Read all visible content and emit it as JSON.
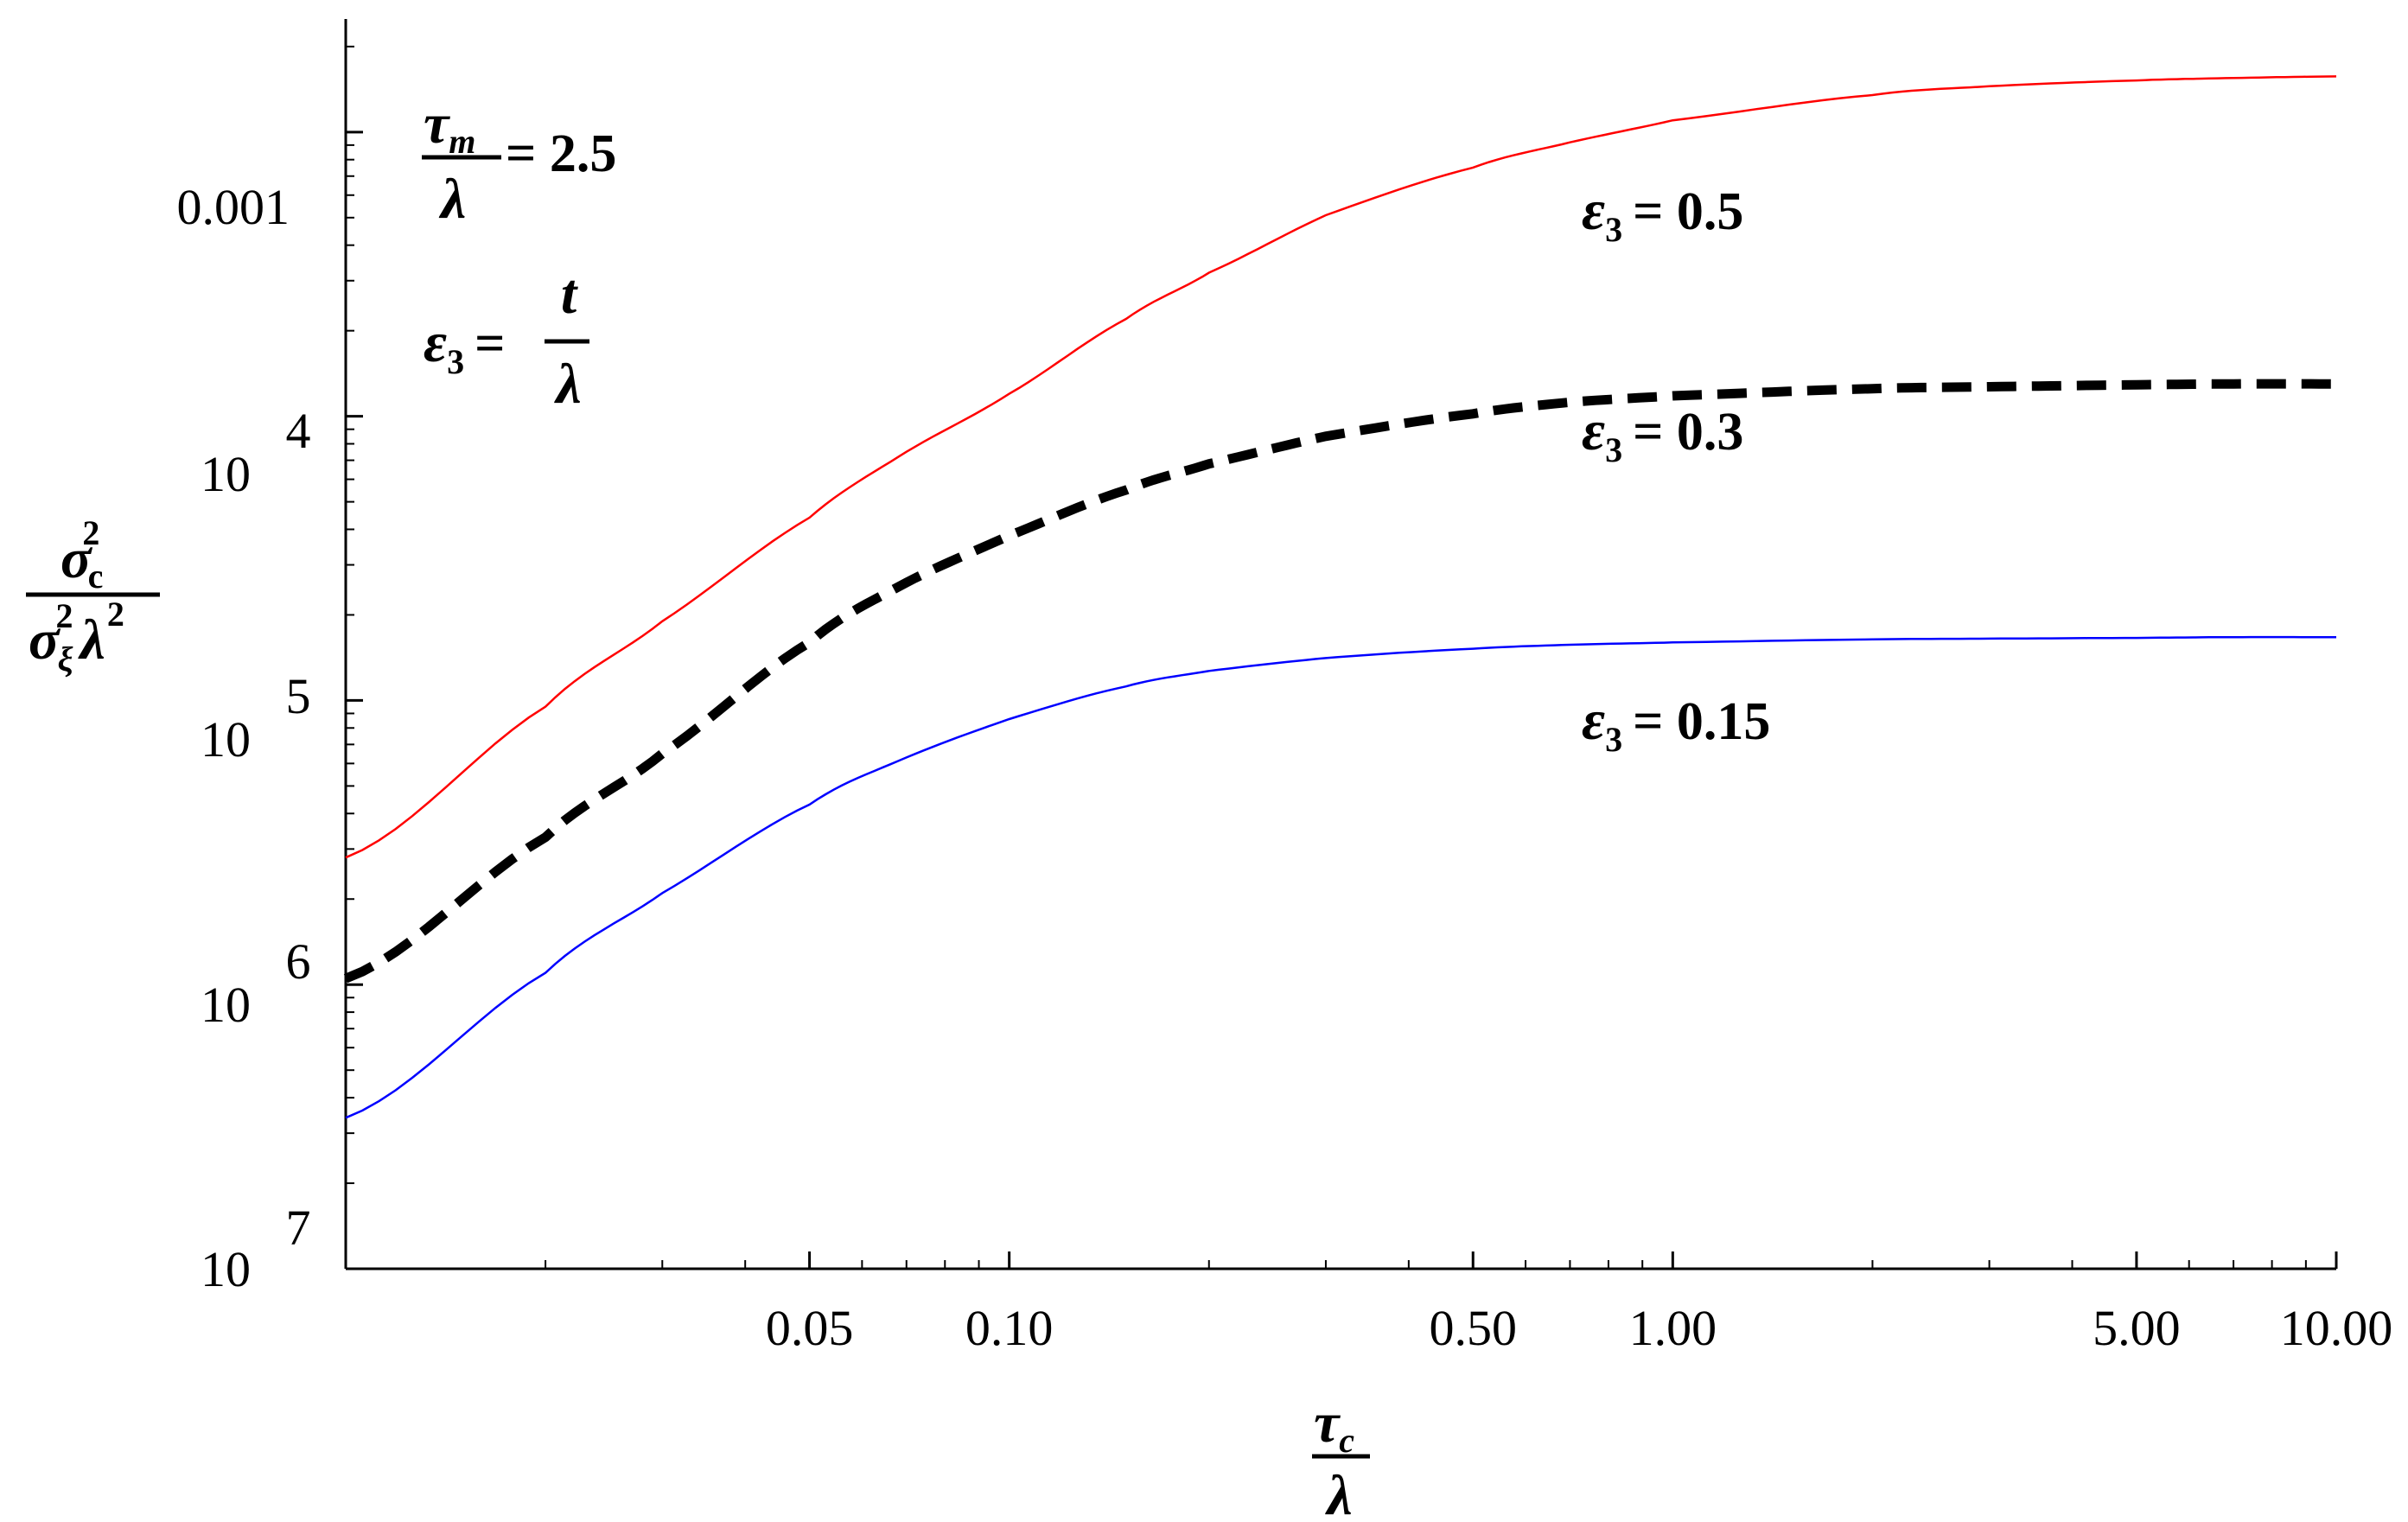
{
  "chart_data": {
    "type": "line",
    "x_scale": "log",
    "y_scale": "log",
    "xlim": [
      0.01,
      10
    ],
    "ylim": [
      1e-07,
      0.0025
    ],
    "xticks": [
      {
        "value": 0.05,
        "label": "0.05"
      },
      {
        "value": 0.1,
        "label": "0.10"
      },
      {
        "value": 0.5,
        "label": "0.50"
      },
      {
        "value": 1,
        "label": "1.00"
      },
      {
        "value": 5,
        "label": "5.00"
      },
      {
        "value": 10,
        "label": "10.00"
      }
    ],
    "yticks": [
      {
        "value": 0.001,
        "label": "0.001",
        "exponent": ""
      },
      {
        "value": 0.0001,
        "label": "10",
        "exponent": "4"
      },
      {
        "value": 1e-05,
        "label": "10",
        "exponent": "5"
      },
      {
        "value": 1e-06,
        "label": "10",
        "exponent": "6"
      },
      {
        "value": 1e-07,
        "label": "10",
        "exponent": "7"
      }
    ],
    "xlabel": {
      "numerator": "τ",
      "numerator_sub": "c",
      "denominator": "λ"
    },
    "ylabel": {
      "numerator": "σ",
      "numerator_sub": "c",
      "numerator_sup": "2",
      "denominator": "σ",
      "denominator_sub": "ξ",
      "denominator_sup": "2",
      "denominator_tail": "λ",
      "denominator_tail_sup": "2"
    },
    "annotations": {
      "tau_m": {
        "numerator": "τ",
        "numerator_sub": "m",
        "denominator": "λ",
        "value": "= 2.5"
      },
      "eps_def": {
        "lhs": "ε",
        "lhs_sub": "3",
        "eq": "=",
        "numerator": "t",
        "denominator": "λ"
      }
    },
    "series": [
      {
        "name": "ε3 = 0.5",
        "symbol": "ε",
        "sub": "3",
        "value_text": "= 0.5",
        "color": "#ff0000",
        "style": "solid",
        "x": [
          0.01,
          0.02,
          0.03,
          0.05,
          0.07,
          0.1,
          0.15,
          0.2,
          0.3,
          0.5,
          0.7,
          1,
          2,
          3,
          5,
          7,
          10
        ],
        "y": [
          2.8e-06,
          9.5e-06,
          1.9e-05,
          4.4e-05,
          7.5e-05,
          0.00012,
          0.00022,
          0.00032,
          0.00051,
          0.00075,
          0.00092,
          0.0011,
          0.00135,
          0.00145,
          0.00152,
          0.00155,
          0.00157
        ]
      },
      {
        "name": "ε3 = 0.3",
        "symbol": "ε",
        "sub": "3",
        "value_text": "= 0.3",
        "color": "#000000",
        "style": "dashed",
        "x": [
          0.01,
          0.02,
          0.03,
          0.05,
          0.07,
          0.1,
          0.15,
          0.2,
          0.3,
          0.5,
          0.7,
          1,
          2,
          3,
          5,
          7,
          10
        ],
        "y": [
          1.05e-06,
          3.3e-06,
          6.5e-06,
          1.6e-05,
          2.6e-05,
          3.8e-05,
          5.5e-05,
          6.8e-05,
          8.5e-05,
          0.000102,
          0.000112,
          0.000118,
          0.000125,
          0.000127,
          0.000129,
          0.00013,
          0.00013
        ]
      },
      {
        "name": "ε3 = 0.15",
        "symbol": "ε",
        "sub": "3",
        "value_text": "= 0.15",
        "color": "#0000ff",
        "style": "solid",
        "x": [
          0.01,
          0.02,
          0.03,
          0.05,
          0.07,
          0.1,
          0.15,
          0.2,
          0.3,
          0.5,
          0.7,
          1,
          2,
          3,
          5,
          7,
          10
        ],
        "y": [
          3.4e-07,
          1.1e-06,
          2.1e-06,
          4.3e-06,
          6.3e-06,
          8.6e-06,
          1.12e-05,
          1.27e-05,
          1.41e-05,
          1.52e-05,
          1.57e-05,
          1.6e-05,
          1.64e-05,
          1.65e-05,
          1.66e-05,
          1.67e-05,
          1.67e-05
        ]
      }
    ]
  }
}
